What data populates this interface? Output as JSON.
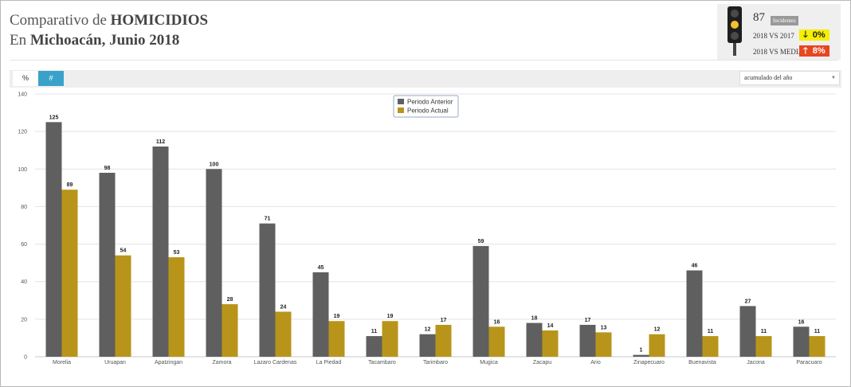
{
  "header": {
    "title_prefix": "Comparativo de ",
    "title_bold": "HOMICIDIOS",
    "subtitle_prefix": "En ",
    "subtitle_bold": "Michoacán, Junio 2018"
  },
  "indicator": {
    "count": "87",
    "count_label": "Incidentes",
    "light_state": "yellow",
    "comparisons": [
      {
        "label": "2018 VS 2017",
        "arrow": "down",
        "arrow_glyph": "🡓",
        "value": "0%",
        "bg_color": "#f5ef00",
        "text_color": "#222222"
      },
      {
        "label": "2018 VS MEDIA",
        "arrow": "up",
        "arrow_glyph": "🡑",
        "value": "8%",
        "bg_color": "#e8461f",
        "text_color": "#ffffff"
      }
    ]
  },
  "toolbar": {
    "percent_label": "%",
    "number_label": "#",
    "active": "number",
    "select_value": "acumulado del año",
    "select_icon": "chevron-down-icon"
  },
  "chart_data": {
    "type": "bar",
    "categories": [
      "Morelia",
      "Uruapan",
      "Apatzingan",
      "Zamora",
      "Lazaro Cardenas",
      "La Piedad",
      "Tacambaro",
      "Tarimbaro",
      "Mugica",
      "Zacapu",
      "Ario",
      "Zinapecuaro",
      "Buenavista",
      "Jacona",
      "Paracuaro"
    ],
    "series": [
      {
        "name": "Periodo Anterior",
        "color": "#5f5f5f",
        "values": [
          125,
          98,
          112,
          100,
          71,
          45,
          11,
          12,
          59,
          18,
          17,
          1,
          46,
          27,
          16
        ]
      },
      {
        "name": "Periodo Actual",
        "color": "#b8951a",
        "values": [
          89,
          54,
          53,
          28,
          24,
          19,
          19,
          17,
          16,
          14,
          13,
          12,
          11,
          11,
          11
        ]
      }
    ],
    "yticks": [
      0,
      20,
      40,
      60,
      80,
      100,
      120,
      140
    ],
    "ylim": [
      0,
      140
    ],
    "grid": true,
    "legend_position": "top-center",
    "data_labels": true
  }
}
